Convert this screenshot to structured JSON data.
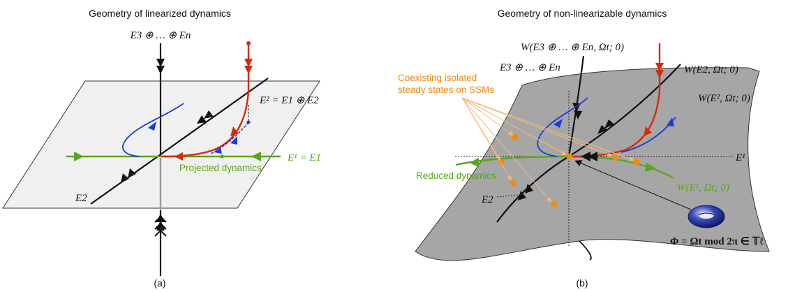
{
  "panel_a": {
    "title": "Geometry of linearized dynamics",
    "caption": "(a)",
    "label_top": "E3 ⊕ … ⊕ En",
    "label_plane": "E² = E1 ⊕ E2",
    "label_e1": "E¹ = E1",
    "label_e2": "E2",
    "label_projected": "Projected dynamics"
  },
  "panel_b": {
    "title": "Geometry of non-linearizable dynamics",
    "caption": "(b)",
    "label_w_top": "W(E3 ⊕ … ⊕ En, Ωt; 0)",
    "label_top": "E3 ⊕ … ⊕ En",
    "label_w_e2": "W(E2, Ωt; 0)",
    "label_w_plane": "W(E², Ωt; 0)",
    "label_e1": "E¹",
    "label_e2": "E2",
    "label_w_e1": "W(E¹, Ωt; 0)",
    "label_coexisting_1": "Coexisting isolated",
    "label_coexisting_2": "steady states on SSMs",
    "label_reduced": "Reduced dynamics",
    "label_phi": "Φ = Ωt mod 2π ∈ 𝕋ℓ"
  },
  "colors": {
    "green": "#5aa51e",
    "orange": "#f08a12",
    "red": "#d62a0c",
    "blue": "#1a3cd8",
    "plane_a": "#f0f0f0",
    "surface_b": "#a4a4a4"
  }
}
